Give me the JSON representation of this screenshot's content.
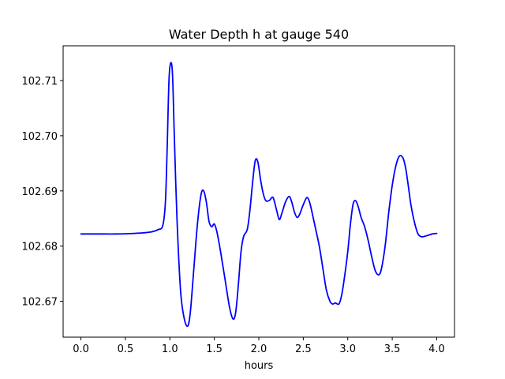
{
  "chart_data": {
    "type": "line",
    "title": "Water Depth h at gauge 540",
    "xlabel": "hours",
    "ylabel": "",
    "xlim": [
      -0.2,
      4.2
    ],
    "ylim": [
      102.6635,
      102.7163
    ],
    "xticks": [
      0.0,
      0.5,
      1.0,
      1.5,
      2.0,
      2.5,
      3.0,
      3.5,
      4.0
    ],
    "xtick_labels": [
      "0.0",
      "0.5",
      "1.0",
      "1.5",
      "2.0",
      "2.5",
      "3.0",
      "3.5",
      "4.0"
    ],
    "yticks": [
      102.67,
      102.68,
      102.69,
      102.7,
      102.71
    ],
    "ytick_labels": [
      "102.67",
      "102.68",
      "102.69",
      "102.70",
      "102.71"
    ],
    "grid": false,
    "series": [
      {
        "color": "#0000ff",
        "x": [
          0.0,
          0.2,
          0.4,
          0.6,
          0.7,
          0.8,
          0.87,
          0.92,
          0.95,
          0.97,
          0.99,
          1.01,
          1.03,
          1.05,
          1.08,
          1.12,
          1.16,
          1.2,
          1.23,
          1.27,
          1.31,
          1.35,
          1.38,
          1.41,
          1.44,
          1.47,
          1.5,
          1.53,
          1.57,
          1.62,
          1.67,
          1.71,
          1.74,
          1.77,
          1.8,
          1.83,
          1.87,
          1.9,
          1.93,
          1.96,
          1.99,
          2.02,
          2.05,
          2.08,
          2.12,
          2.16,
          2.2,
          2.23,
          2.26,
          2.3,
          2.34,
          2.37,
          2.4,
          2.43,
          2.46,
          2.5,
          2.54,
          2.57,
          2.6,
          2.64,
          2.68,
          2.72,
          2.76,
          2.8,
          2.83,
          2.86,
          2.9,
          2.93,
          2.96,
          3.0,
          3.03,
          3.06,
          3.09,
          3.12,
          3.15,
          3.19,
          3.23,
          3.27,
          3.31,
          3.35,
          3.38,
          3.42,
          3.46,
          3.5,
          3.54,
          3.58,
          3.62,
          3.65,
          3.68,
          3.71,
          3.75,
          3.79,
          3.83,
          3.87,
          3.91,
          3.95,
          4.0
        ],
        "y": [
          102.6822,
          102.6822,
          102.6822,
          102.6823,
          102.6824,
          102.6826,
          102.683,
          102.6837,
          102.688,
          102.698,
          102.71,
          102.7132,
          102.711,
          102.7,
          102.685,
          102.672,
          102.667,
          102.6655,
          102.668,
          102.676,
          102.684,
          102.6893,
          102.69,
          102.688,
          102.6845,
          102.6835,
          102.684,
          102.6825,
          102.679,
          102.674,
          102.669,
          102.6668,
          102.668,
          102.673,
          102.679,
          102.6818,
          102.683,
          102.6865,
          102.6915,
          102.6955,
          102.6952,
          102.692,
          102.6895,
          102.6882,
          102.6883,
          102.6888,
          102.6865,
          102.6848,
          102.686,
          102.688,
          102.689,
          102.688,
          102.6862,
          102.6852,
          102.6858,
          102.6875,
          102.6888,
          102.688,
          102.686,
          102.683,
          102.68,
          102.676,
          102.672,
          102.67,
          102.6695,
          102.6697,
          102.6695,
          102.671,
          102.674,
          102.679,
          102.684,
          102.6876,
          102.6882,
          102.687,
          102.6852,
          102.6835,
          102.681,
          102.678,
          102.6755,
          102.6748,
          102.676,
          102.68,
          102.686,
          102.691,
          102.6945,
          102.6963,
          102.696,
          102.6942,
          102.691,
          102.6875,
          102.6843,
          102.6822,
          102.6817,
          102.6818,
          102.682,
          102.6822,
          102.6823
        ]
      }
    ]
  }
}
